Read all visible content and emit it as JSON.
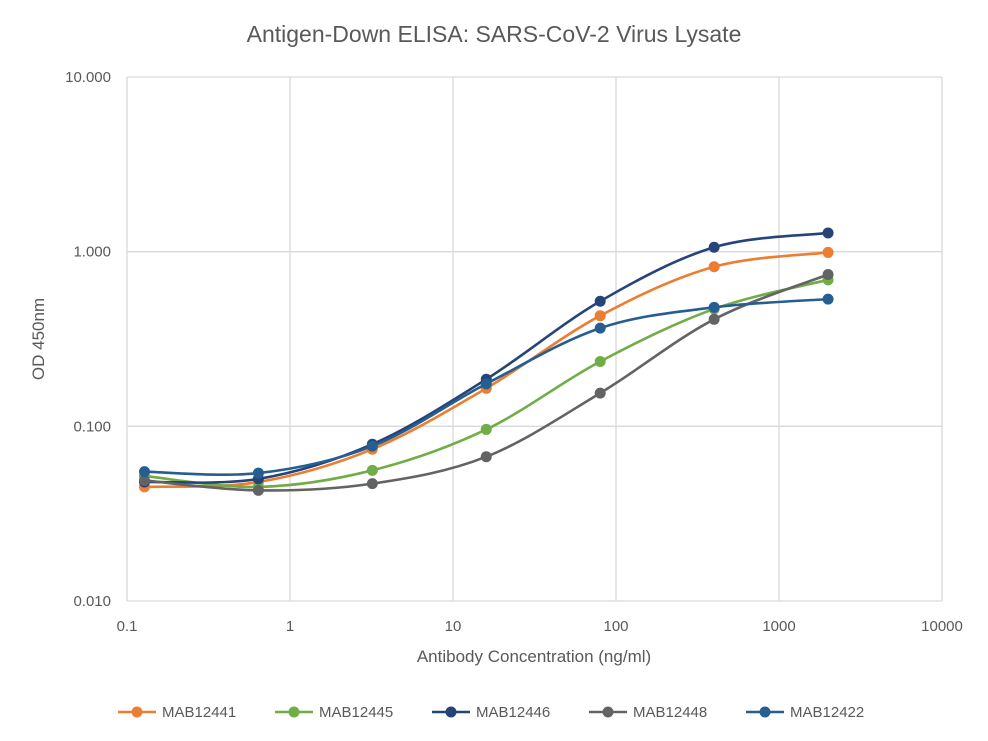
{
  "chart_data": {
    "type": "line",
    "title": "Antigen-Down ELISA: SARS-CoV-2 Virus Lysate",
    "xlabel": "Antibody Concentration (ng/ml)",
    "ylabel": "OD 450nm",
    "x_scale": "log",
    "y_scale": "log",
    "xlim": [
      0.1,
      10000
    ],
    "ylim": [
      0.01,
      10
    ],
    "x_ticks": [
      "0.1",
      "1",
      "10",
      "100",
      "1000",
      "10000"
    ],
    "y_ticks": [
      "0.010",
      "0.100",
      "1.000",
      "10.000"
    ],
    "grid": true,
    "legend_position": "bottom",
    "x": [
      0.128,
      0.64,
      3.2,
      16,
      80,
      400,
      2000
    ],
    "series": [
      {
        "name": "MAB12441",
        "color": "#ed7d31",
        "values": [
          0.045,
          0.048,
          0.074,
          0.165,
          0.43,
          0.82,
          0.99
        ]
      },
      {
        "name": "MAB12445",
        "color": "#70ad47",
        "values": [
          0.052,
          0.045,
          0.056,
          0.096,
          0.235,
          0.47,
          0.69
        ]
      },
      {
        "name": "MAB12446",
        "color": "#264478",
        "values": [
          0.048,
          0.05,
          0.079,
          0.186,
          0.52,
          1.06,
          1.28
        ]
      },
      {
        "name": "MAB12448",
        "color": "#636363",
        "values": [
          0.049,
          0.043,
          0.047,
          0.067,
          0.155,
          0.41,
          0.74
        ]
      },
      {
        "name": "MAB12422",
        "color": "#255e91",
        "values": [
          0.055,
          0.054,
          0.077,
          0.175,
          0.365,
          0.48,
          0.535
        ]
      }
    ]
  }
}
